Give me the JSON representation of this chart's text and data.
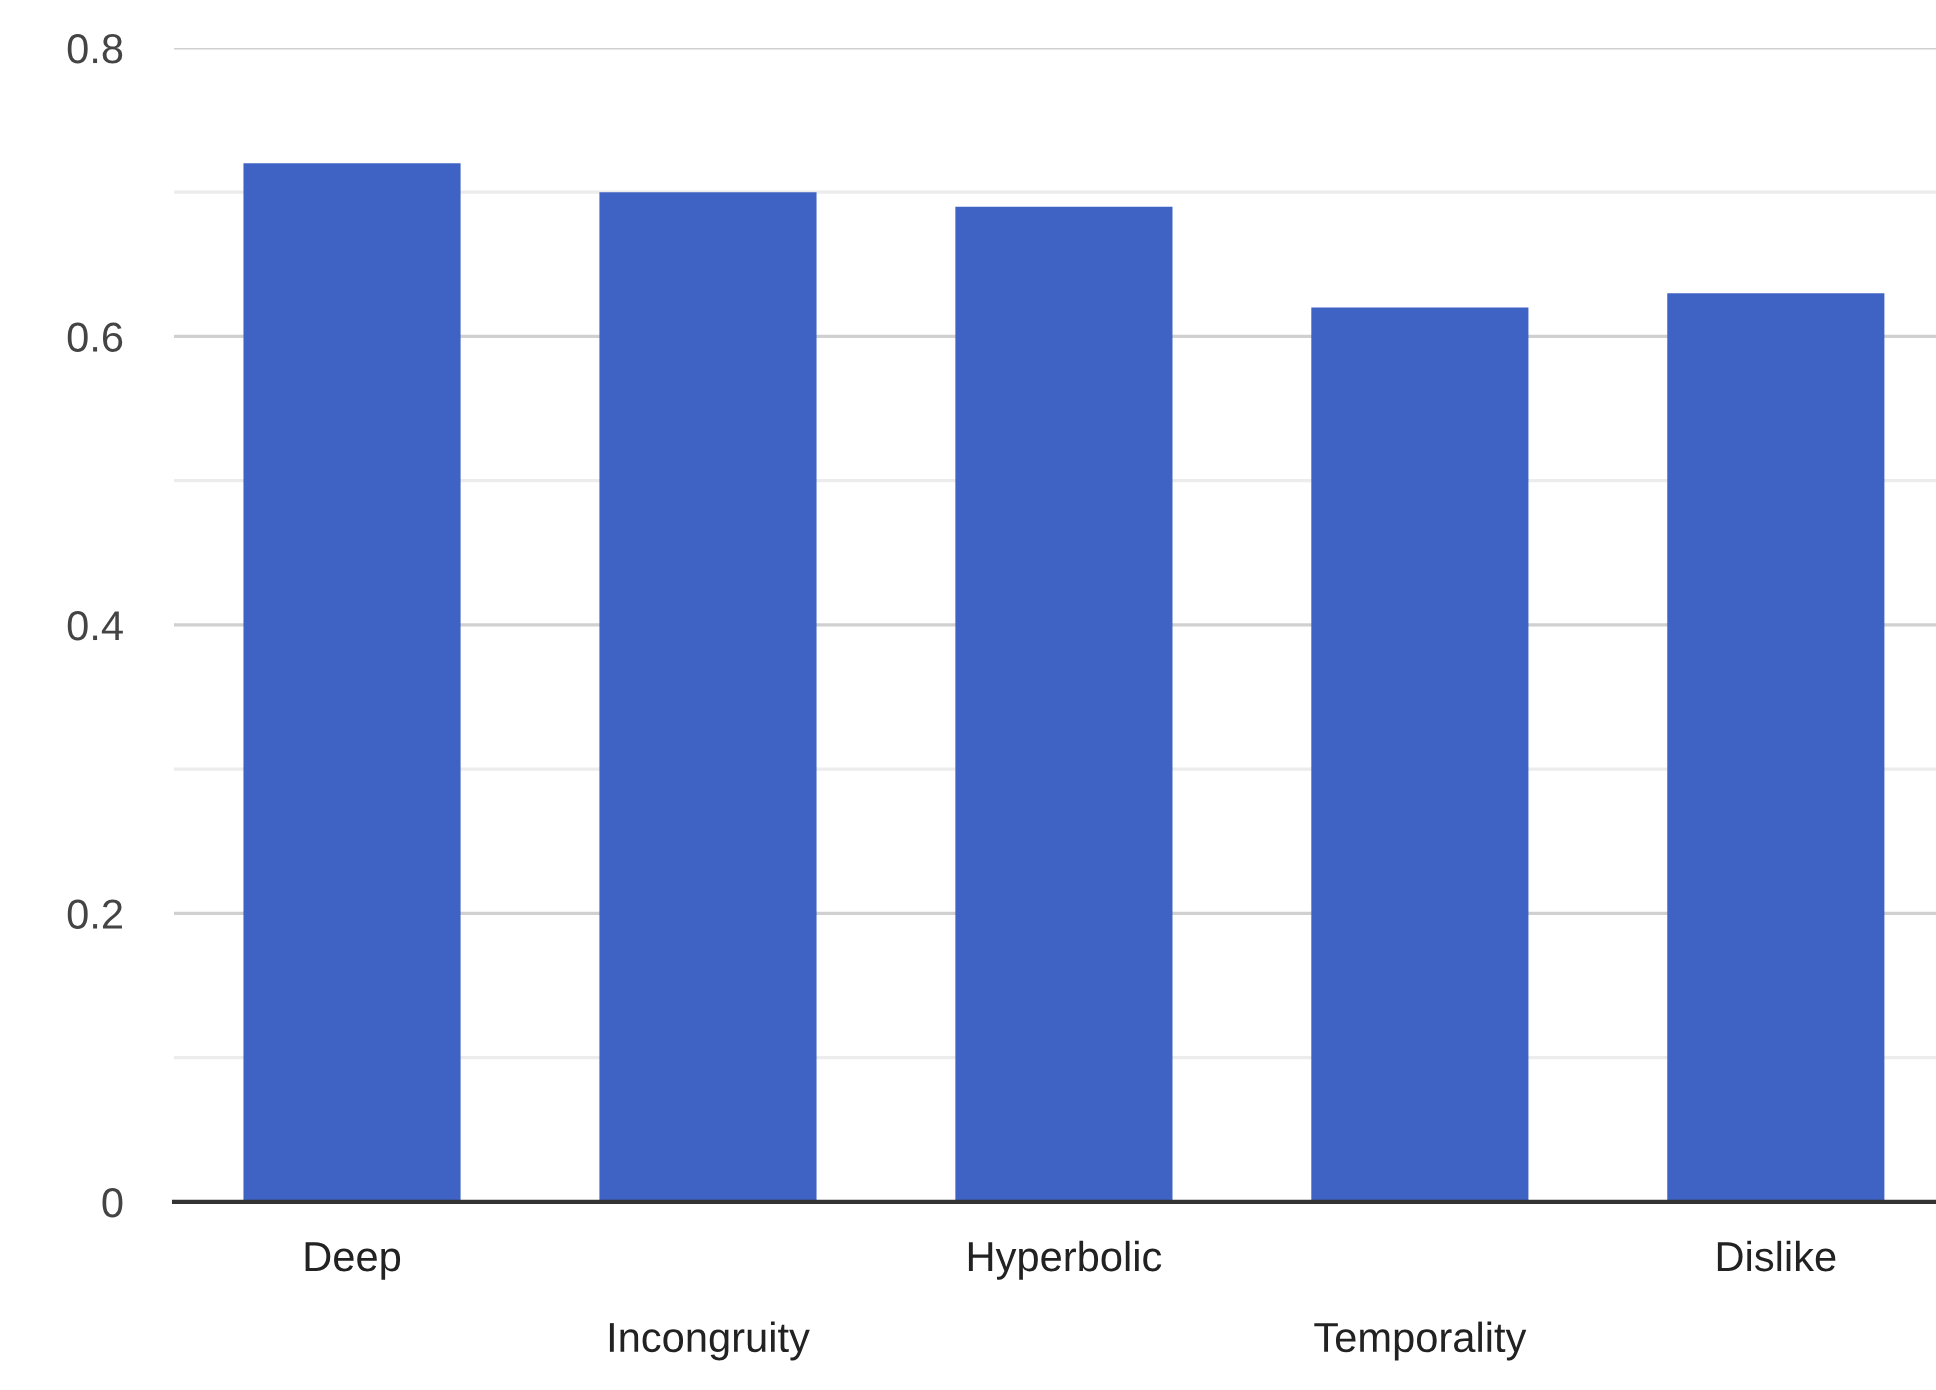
{
  "chart_data": {
    "type": "bar",
    "categories": [
      "Deep",
      "Incongruity",
      "Hyperbolic",
      "Temporality",
      "Dislike"
    ],
    "values": [
      0.72,
      0.7,
      0.69,
      0.62,
      0.63
    ],
    "color": "#3f63c4",
    "ylim": [
      0,
      0.8
    ],
    "yticks": [
      0,
      {
        "value": 0.1,
        "label": null
      },
      0.2,
      {
        "value": 0.3,
        "label": null
      },
      0.4,
      {
        "value": 0.5,
        "label": null
      },
      0.6,
      {
        "value": 0.7,
        "label": null
      },
      0.8
    ],
    "grid": "y"
  }
}
